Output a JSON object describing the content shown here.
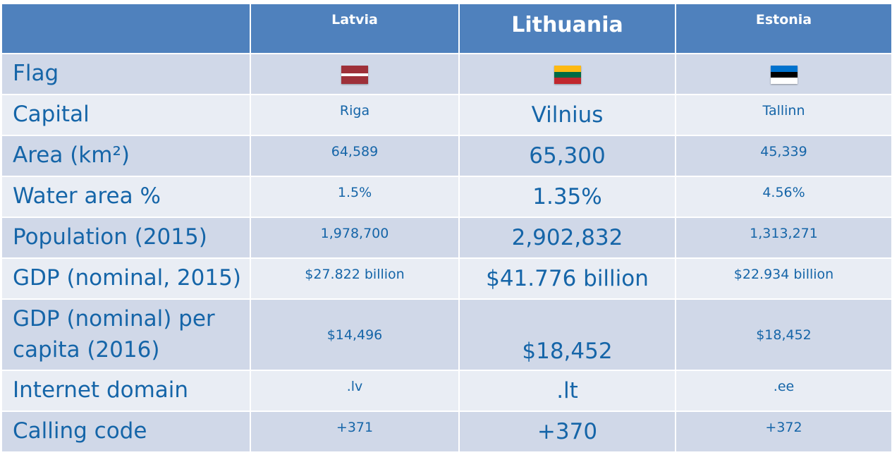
{
  "header": {
    "corner": "",
    "countries": [
      "Latvia",
      "Lithuania",
      "Estonia"
    ]
  },
  "rows": {
    "flag": {
      "label": "Flag",
      "icons": [
        "latvia-flag-icon",
        "lithuania-flag-icon",
        "estonia-flag-icon"
      ]
    },
    "capital": {
      "label": "Capital",
      "values": [
        "Riga",
        "Vilnius",
        "Tallinn"
      ]
    },
    "area": {
      "label": "Area (km²)",
      "values": [
        "64,589",
        "65,300",
        "45,339"
      ]
    },
    "water": {
      "label": "Water area %",
      "values": [
        "1.5%",
        "1.35%",
        "4.56%"
      ]
    },
    "population": {
      "label": "Population (2015)",
      "values": [
        "1,978,700",
        "2,902,832",
        "1,313,271"
      ]
    },
    "gdp": {
      "label": "GDP (nominal, 2015)",
      "values": [
        "$27.822 billion",
        "$41.776 billion",
        "$22.934 billion"
      ]
    },
    "gdp_pc": {
      "label": "GDP (nominal) per capita (2016)",
      "values": [
        "$14,496",
        "$18,452",
        "$18,452"
      ]
    },
    "domain": {
      "label": "Internet domain",
      "values": [
        ".lv",
        ".lt",
        ".ee"
      ]
    },
    "calling": {
      "label": "Calling code",
      "values": [
        "+371",
        "+370",
        "+372"
      ]
    }
  },
  "colors": {
    "header_bg": "#4f81bd",
    "row_dark": "#d0d8e8",
    "row_light": "#e9edf4",
    "text": "#1565a8"
  }
}
